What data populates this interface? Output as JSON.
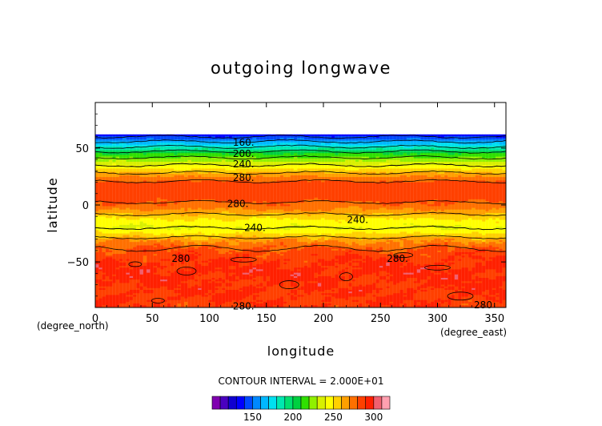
{
  "chart_data": {
    "type": "heatmap",
    "title": "outgoing longwave",
    "xlabel": "longitude",
    "ylabel": "latitude",
    "x_unit": "(degree_east)",
    "y_unit": "(degree_north)",
    "xlim": [
      0,
      360
    ],
    "ylim": [
      -90,
      90
    ],
    "x_ticks": [
      0,
      50,
      100,
      150,
      200,
      250,
      300,
      350
    ],
    "y_ticks": [
      50,
      0,
      -50
    ],
    "data_lat_range": [
      -90,
      62
    ],
    "contour_interval_text": "CONTOUR INTERVAL = 2.000E+01",
    "colorbar": {
      "tick_labels": [
        "150",
        "200",
        "250",
        "300"
      ],
      "tick_values": [
        150,
        200,
        250,
        300
      ],
      "range": [
        100,
        320
      ],
      "colors": [
        "#8000b0",
        "#4a00c0",
        "#1000d0",
        "#0000ff",
        "#0048ff",
        "#0088ff",
        "#00b8ff",
        "#00e0f0",
        "#00e8b0",
        "#00e070",
        "#00d040",
        "#30e000",
        "#90f000",
        "#d8f000",
        "#ffff00",
        "#ffd000",
        "#ffa000",
        "#ff7000",
        "#ff4000",
        "#ff2000",
        "#f06070",
        "#ffa0b0"
      ]
    },
    "zonal_profile": {
      "lat": [
        62,
        57,
        50,
        45,
        40,
        35,
        30,
        25,
        20,
        15,
        10,
        5,
        0,
        -5,
        -10,
        -15,
        -20,
        -25,
        -30,
        -35,
        -40,
        -45,
        -50,
        -55,
        -60,
        -65,
        -70,
        -75,
        -80,
        -85,
        -90
      ],
      "olr": [
        130,
        155,
        185,
        210,
        225,
        240,
        255,
        270,
        282,
        287,
        285,
        282,
        278,
        268,
        255,
        245,
        240,
        250,
        265,
        275,
        283,
        287,
        290,
        292,
        293,
        292,
        290,
        291,
        290,
        289,
        288
      ]
    },
    "contour_labels": [
      {
        "text": "160.",
        "lon": 130,
        "lat": 55
      },
      {
        "text": "200.",
        "lon": 130,
        "lat": 45
      },
      {
        "text": "240.",
        "lon": 130,
        "lat": 36
      },
      {
        "text": "280.",
        "lon": 130,
        "lat": 24
      },
      {
        "text": "280.",
        "lon": 125,
        "lat": 1
      },
      {
        "text": "240.",
        "lon": 230,
        "lat": -13
      },
      {
        "text": "240.",
        "lon": 140,
        "lat": -20
      },
      {
        "text": "280",
        "lon": 75,
        "lat": -47
      },
      {
        "text": "280.",
        "lon": 265,
        "lat": -47
      },
      {
        "text": "280.",
        "lon": 130,
        "lat": -89
      },
      {
        "text": "280",
        "lon": 340,
        "lat": -88
      }
    ]
  }
}
